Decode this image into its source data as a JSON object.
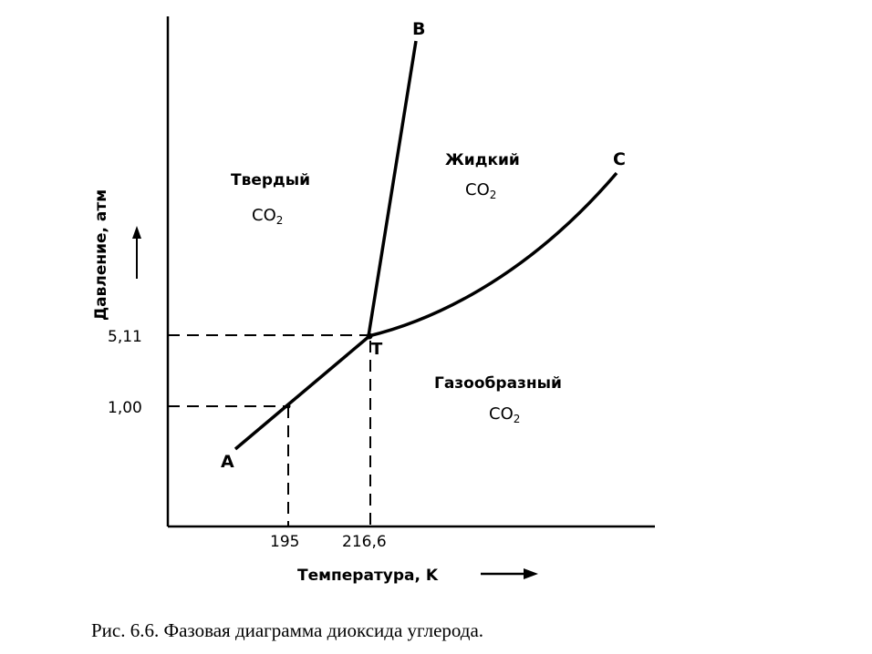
{
  "figure": {
    "caption": "Рис. 6.6. Фазовая диаграмма диоксида углерода.",
    "y_axis_label": "Давление, атм",
    "x_axis_label": "Температура, K"
  },
  "regions": {
    "solid": {
      "line1": "Твердый",
      "line2_base": "CO",
      "line2_sub": "2"
    },
    "liquid": {
      "line1": "Жидкий",
      "line2_base": "CO",
      "line2_sub": "2"
    },
    "gas": {
      "line1": "Газообразный",
      "line2_base": "CO",
      "line2_sub": "2"
    }
  },
  "curve_labels": {
    "A": "A",
    "B": "B",
    "C": "C",
    "T": "T"
  },
  "ticks": {
    "x": [
      "195",
      "216,6"
    ],
    "y": [
      "5,11",
      "1,00"
    ]
  },
  "colors": {
    "ink": "#000000",
    "background": "#ffffff"
  }
}
